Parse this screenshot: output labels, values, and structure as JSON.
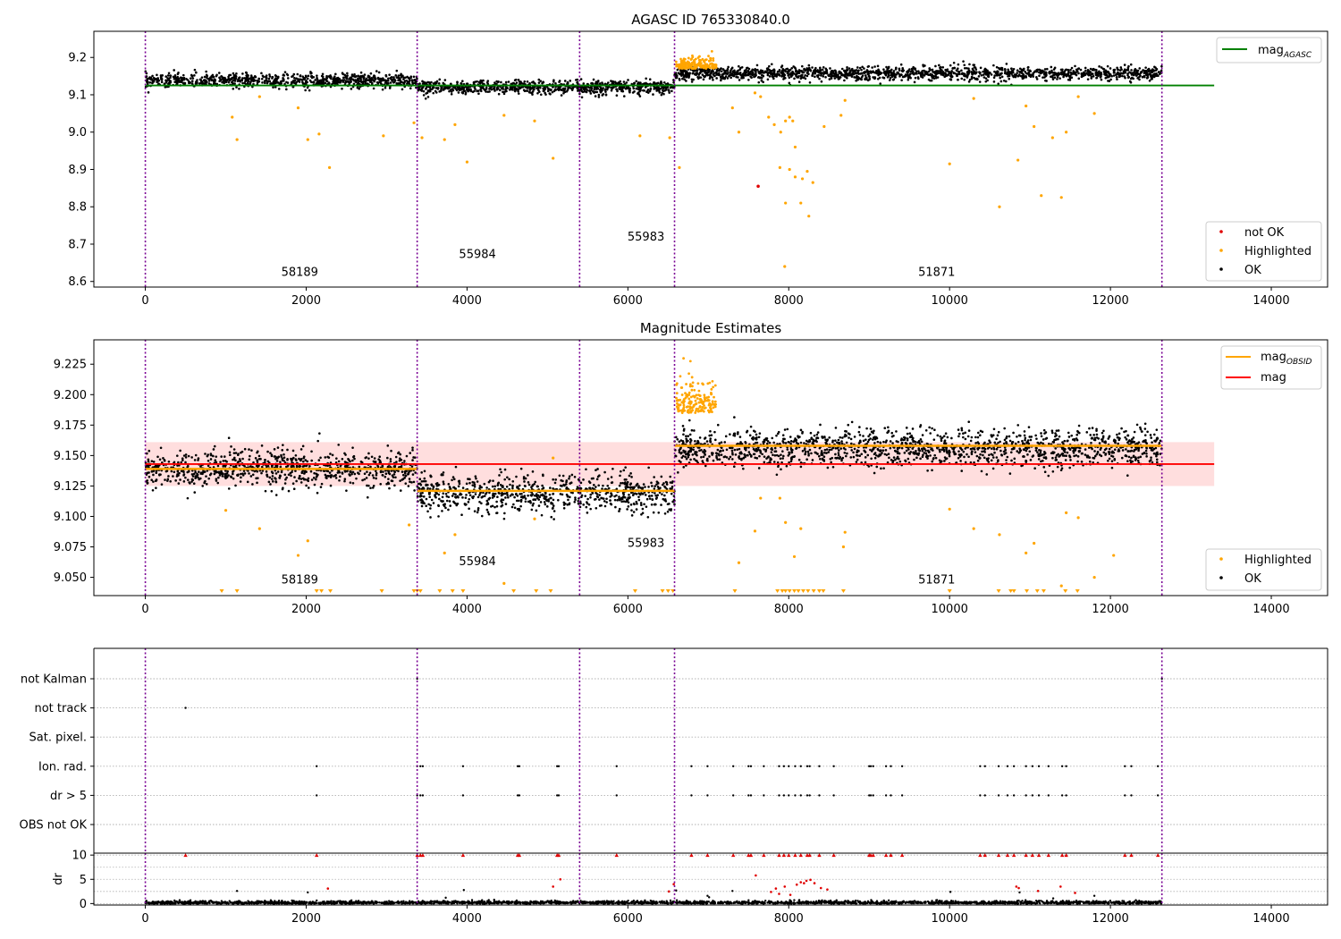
{
  "chart_data": [
    {
      "type": "scatter",
      "title": "AGASC ID 765330840.0",
      "xlim": [
        -640,
        14700
      ],
      "ylim": [
        8.585,
        9.27
      ],
      "xticks": [
        0,
        2000,
        4000,
        6000,
        8000,
        10000,
        12000,
        14000
      ],
      "yticks": [
        8.6,
        8.7,
        8.8,
        8.9,
        9.0,
        9.1,
        9.2
      ],
      "vlines": [
        0,
        3380,
        5400,
        6580,
        12640
      ],
      "obsid_labels": [
        {
          "text": "58189",
          "x": 1690,
          "y": 8.615
        },
        {
          "text": "55984",
          "x": 3900,
          "y": 8.663
        },
        {
          "text": "55983",
          "x": 5995,
          "y": 8.71
        },
        {
          "text": "51871",
          "x": 9610,
          "y": 8.615
        }
      ],
      "hlines": [
        {
          "name": "mag_AGASC",
          "value": 9.125,
          "x0": 0,
          "x1": 13290,
          "color": "#008000"
        }
      ],
      "segments": [
        {
          "x0": 0,
          "x1": 3380,
          "center": 9.138,
          "spread": 0.013
        },
        {
          "x0": 3380,
          "x1": 6580,
          "center": 9.12,
          "spread": 0.013
        },
        {
          "x0": 6580,
          "x1": 12640,
          "center": 9.157,
          "spread": 0.013
        }
      ],
      "outliers": [
        [
          1080,
          9.04
        ],
        [
          1140,
          8.98
        ],
        [
          1420,
          9.095
        ],
        [
          1900,
          9.065
        ],
        [
          2020,
          8.98
        ],
        [
          2160,
          8.995
        ],
        [
          2290,
          8.905
        ],
        [
          2960,
          8.99
        ],
        [
          3340,
          9.025
        ],
        [
          3440,
          8.985
        ],
        [
          3720,
          8.98
        ],
        [
          3850,
          9.02
        ],
        [
          4000,
          8.92
        ],
        [
          4460,
          9.045
        ],
        [
          4840,
          9.03
        ],
        [
          5070,
          8.93
        ],
        [
          6150,
          8.99
        ],
        [
          6520,
          8.985
        ],
        [
          6640,
          8.905
        ],
        [
          7300,
          9.065
        ],
        [
          7380,
          9.0
        ],
        [
          7580,
          9.105
        ],
        [
          7650,
          9.095
        ],
        [
          7750,
          9.04
        ],
        [
          7820,
          9.02
        ],
        [
          7900,
          9.0
        ],
        [
          7960,
          9.03
        ],
        [
          8010,
          9.04
        ],
        [
          8050,
          9.03
        ],
        [
          8080,
          8.96
        ],
        [
          7890,
          8.905
        ],
        [
          7960,
          8.81
        ],
        [
          8010,
          8.9
        ],
        [
          8080,
          8.88
        ],
        [
          8150,
          8.81
        ],
        [
          8170,
          8.875
        ],
        [
          8230,
          8.895
        ],
        [
          8300,
          8.865
        ],
        [
          8250,
          8.775
        ],
        [
          8440,
          9.015
        ],
        [
          8650,
          9.045
        ],
        [
          8700,
          9.085
        ],
        [
          7950,
          8.64
        ],
        [
          10000,
          8.915
        ],
        [
          10300,
          9.09
        ],
        [
          10620,
          8.8
        ],
        [
          10850,
          8.925
        ],
        [
          10950,
          9.07
        ],
        [
          11050,
          9.015
        ],
        [
          11140,
          8.83
        ],
        [
          11280,
          8.985
        ],
        [
          11390,
          8.825
        ],
        [
          11450,
          9.0
        ],
        [
          11600,
          9.095
        ],
        [
          11800,
          9.05
        ]
      ],
      "notok_points": [
        [
          7620,
          8.855
        ]
      ],
      "highlight_cluster": {
        "x0": 6600,
        "x1": 7100,
        "base": 9.17,
        "spread": 0.03
      },
      "legend_lines": [
        {
          "label": "mag_AGASC",
          "color": "#008000"
        }
      ],
      "legend_points": [
        {
          "label": "not OK",
          "color": "#e00000"
        },
        {
          "label": "Highlighted",
          "color": "#ffa500"
        },
        {
          "label": "OK",
          "color": "#000000"
        }
      ]
    },
    {
      "type": "scatter",
      "title": "Magnitude Estimates",
      "xlim": [
        -640,
        14700
      ],
      "ylim": [
        9.035,
        9.245
      ],
      "xticks": [
        0,
        2000,
        4000,
        6000,
        8000,
        10000,
        12000,
        14000
      ],
      "yticks": [
        9.05,
        9.075,
        9.1,
        9.125,
        9.15,
        9.175,
        9.2,
        9.225
      ],
      "vlines": [
        0,
        3380,
        5400,
        6580,
        12640
      ],
      "obsid_labels": [
        {
          "text": "58189",
          "x": 1690,
          "y": 9.045
        },
        {
          "text": "55984",
          "x": 3900,
          "y": 9.06
        },
        {
          "text": "55983",
          "x": 5995,
          "y": 9.075
        },
        {
          "text": "51871",
          "x": 9610,
          "y": 9.045
        }
      ],
      "mag": 9.143,
      "mag_band": [
        9.125,
        9.161
      ],
      "mag_x_range": [
        0,
        13290
      ],
      "obsid_mags": [
        {
          "x0": 0,
          "x1": 3380,
          "value": 9.139
        },
        {
          "x0": 3380,
          "x1": 6580,
          "value": 9.121
        },
        {
          "x0": 6580,
          "x1": 12640,
          "value": 9.158
        }
      ],
      "segments": [
        {
          "x0": 0,
          "x1": 3380,
          "center": 9.139,
          "spread": 0.011
        },
        {
          "x0": 3380,
          "x1": 6580,
          "center": 9.119,
          "spread": 0.011
        },
        {
          "x0": 6580,
          "x1": 12640,
          "center": 9.156,
          "spread": 0.011
        }
      ],
      "outliers": [
        [
          1000,
          9.105
        ],
        [
          1420,
          9.09
        ],
        [
          1900,
          9.068
        ],
        [
          2020,
          9.08
        ],
        [
          3280,
          9.093
        ],
        [
          3720,
          9.07
        ],
        [
          3850,
          9.085
        ],
        [
          4460,
          9.045
        ],
        [
          4840,
          9.098
        ],
        [
          5070,
          9.148
        ],
        [
          7380,
          9.062
        ],
        [
          7580,
          9.088
        ],
        [
          7650,
          9.115
        ],
        [
          7890,
          9.115
        ],
        [
          7960,
          9.095
        ],
        [
          8070,
          9.067
        ],
        [
          8150,
          9.09
        ],
        [
          8700,
          9.087
        ],
        [
          8680,
          9.075
        ],
        [
          10000,
          9.106
        ],
        [
          10300,
          9.09
        ],
        [
          10620,
          9.085
        ],
        [
          10950,
          9.07
        ],
        [
          11050,
          9.078
        ],
        [
          11390,
          9.043
        ],
        [
          11450,
          9.103
        ],
        [
          11600,
          9.099
        ],
        [
          11800,
          9.05
        ],
        [
          12040,
          9.068
        ]
      ],
      "clipped_x": [
        950,
        1140,
        2130,
        2190,
        2300,
        2940,
        3340,
        3380,
        3420,
        3660,
        3820,
        3950,
        4580,
        4860,
        5040,
        6090,
        6430,
        6500,
        6560,
        7330,
        7860,
        7920,
        7960,
        8010,
        8070,
        8120,
        8180,
        8240,
        8310,
        8380,
        8430,
        8680,
        10000,
        10610,
        10760,
        10800,
        10960,
        11090,
        11170,
        11440,
        11590
      ],
      "highlight_cluster": {
        "x0": 6600,
        "x1": 7100,
        "base": 9.185,
        "spread": 0.025
      },
      "legend_lines": [
        {
          "label": "mag_OBSID",
          "color": "#ffa500"
        },
        {
          "label": "mag",
          "color": "#ff0000"
        }
      ],
      "legend_points": [
        {
          "label": "Highlighted",
          "color": "#ffa500"
        },
        {
          "label": "OK",
          "color": "#000000"
        }
      ]
    },
    {
      "type": "scatter",
      "xlim": [
        -640,
        14700
      ],
      "xticks": [
        0,
        2000,
        4000,
        6000,
        8000,
        10000,
        12000,
        14000
      ],
      "vlines": [
        0,
        3380,
        5400,
        6580,
        12640
      ],
      "categories": [
        "not Kalman",
        "not track",
        "Sat. pixel.",
        "Ion. rad.",
        "dr > 5",
        "OBS not OK"
      ],
      "flag_points": {
        "not Kalman": [
          3380,
          12640
        ],
        "not track": [
          500
        ],
        "Ion. rad.": [
          2130,
          3380,
          3420,
          3450,
          3950,
          4630,
          4650,
          5120,
          5140,
          5860,
          6790,
          6990,
          7310,
          7500,
          7530,
          7690,
          7880,
          7940,
          8000,
          8080,
          8150,
          8230,
          8260,
          8380,
          8560,
          9000,
          9020,
          9050,
          9210,
          9270,
          9410,
          10380,
          10440,
          10610,
          10720,
          10800,
          10950,
          11030,
          11110,
          11230,
          11400,
          11450,
          12180,
          12260,
          12590
        ],
        "dr > 5": [
          2130,
          3380,
          3420,
          3450,
          3950,
          4630,
          4650,
          5120,
          5140,
          5860,
          6790,
          6990,
          7310,
          7500,
          7530,
          7690,
          7880,
          7940,
          8000,
          8080,
          8150,
          8230,
          8260,
          8380,
          8560,
          9000,
          9020,
          9050,
          9210,
          9270,
          9410,
          10380,
          10440,
          10610,
          10720,
          10800,
          10950,
          11030,
          11110,
          11230,
          11400,
          11450,
          12180,
          12260,
          12590
        ]
      }
    },
    {
      "type": "scatter",
      "ylabel": "dr",
      "xlim": [
        -640,
        14700
      ],
      "ylim": [
        -0.3,
        10.4
      ],
      "yticks": [
        0,
        5,
        10
      ],
      "xticks": [
        0,
        2000,
        4000,
        6000,
        8000,
        10000,
        12000,
        14000
      ],
      "xticklabels": [
        "0",
        "2000",
        "4000",
        "6000",
        "8000",
        "10000",
        "12000",
        "14000"
      ],
      "vlines": [
        0,
        3380,
        5400,
        6580,
        12640
      ],
      "capped_x": [
        500,
        2130,
        3380,
        3420,
        3450,
        3950,
        4630,
        4650,
        5120,
        5140,
        5860,
        6790,
        6990,
        7310,
        7500,
        7530,
        7690,
        7880,
        7940,
        8000,
        8080,
        8150,
        8230,
        8260,
        8380,
        8560,
        9000,
        9020,
        9050,
        9210,
        9270,
        9410,
        10380,
        10440,
        10610,
        10720,
        10800,
        10950,
        11030,
        11110,
        11230,
        11400,
        11450,
        12180,
        12260,
        12590
      ],
      "moderate_points": [
        [
          2270,
          3.1
        ],
        [
          5160,
          5.0
        ],
        [
          5070,
          3.5
        ],
        [
          6510,
          2.5
        ],
        [
          6570,
          4.0
        ],
        [
          7590,
          5.8
        ],
        [
          7780,
          2.4
        ],
        [
          7840,
          3.1
        ],
        [
          7880,
          2.0
        ],
        [
          7950,
          3.5
        ],
        [
          8020,
          1.8
        ],
        [
          8100,
          3.9
        ],
        [
          8150,
          4.4
        ],
        [
          8190,
          4.2
        ],
        [
          8220,
          4.7
        ],
        [
          8270,
          4.9
        ],
        [
          8320,
          4.2
        ],
        [
          8400,
          3.2
        ],
        [
          8480,
          2.9
        ],
        [
          10830,
          3.5
        ],
        [
          10860,
          3.2
        ],
        [
          11100,
          2.6
        ],
        [
          11380,
          3.5
        ],
        [
          11560,
          2.2
        ]
      ],
      "black_spikes": [
        [
          1140,
          2.6
        ],
        [
          2020,
          2.3
        ],
        [
          3960,
          2.8
        ],
        [
          6600,
          2.7
        ],
        [
          6990,
          1.6
        ],
        [
          7010,
          1.3
        ],
        [
          7300,
          2.6
        ],
        [
          10010,
          2.4
        ],
        [
          10870,
          2.3
        ],
        [
          11800,
          1.6
        ]
      ]
    }
  ]
}
